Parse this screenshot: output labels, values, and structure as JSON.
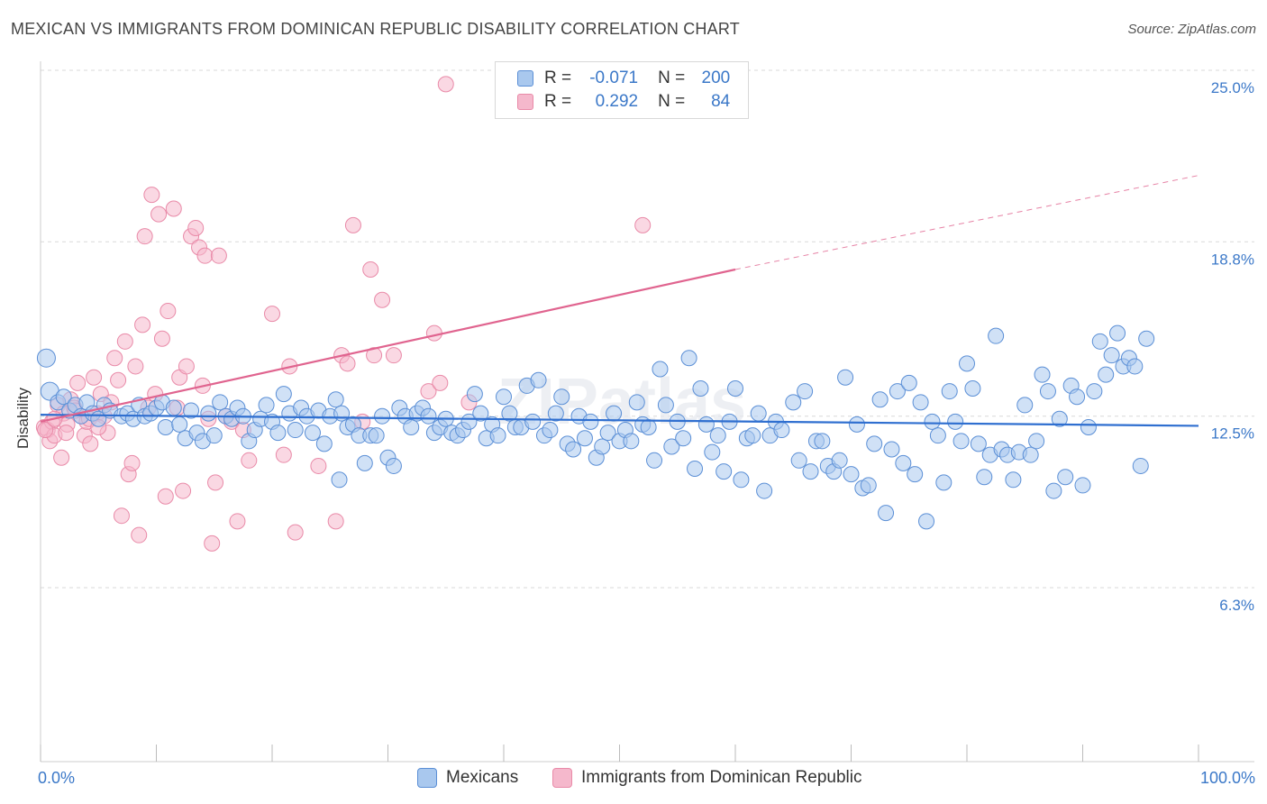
{
  "title": "MEXICAN VS IMMIGRANTS FROM DOMINICAN REPUBLIC DISABILITY CORRELATION CHART",
  "source": "Source: ZipAtlas.com",
  "legend": {
    "rows": [
      {
        "r_label": "R =",
        "r_value": "-0.071",
        "n_label": "N =",
        "n_value": "200"
      },
      {
        "r_label": "R =",
        "r_value": "0.292",
        "n_label": "N =",
        "n_value": "84"
      }
    ]
  },
  "bottom_legend": [
    "Mexicans",
    "Immigrants from Dominican Republic"
  ],
  "colors": {
    "blue_fill": "#a9c8ee",
    "blue_stroke": "#5b8fd6",
    "blue_line": "#2f6fd0",
    "pink_fill": "#f5b8cc",
    "pink_stroke": "#e98aa8",
    "pink_line": "#e0648f",
    "tick_label": "#3b78c8",
    "grid": "#d9d9d9"
  },
  "chart_data": {
    "type": "scatter",
    "title": "MEXICAN VS IMMIGRANTS FROM DOMINICAN REPUBLIC DISABILITY CORRELATION CHART",
    "xlabel": "",
    "ylabel": "Disability",
    "x_tick_labels": [
      "0.0%",
      "100.0%"
    ],
    "y_tick_labels": [
      "6.3%",
      "12.5%",
      "18.8%",
      "25.0%"
    ],
    "y_ticks": [
      6.3,
      12.5,
      18.8,
      25.0
    ],
    "xlim": [
      0,
      100
    ],
    "ylim": [
      0,
      26.0
    ],
    "grid": true,
    "legend_position": "top-center",
    "series": [
      {
        "name": "Mexicans",
        "color": "#5b8fd6",
        "trend": {
          "x": [
            0,
            100
          ],
          "y": [
            12.55,
            12.15
          ]
        },
        "points": [
          [
            0.5,
            14.6
          ],
          [
            0.8,
            13.4
          ],
          [
            1.5,
            13.0
          ],
          [
            2,
            13.2
          ],
          [
            2.5,
            12.7
          ],
          [
            3,
            12.9
          ],
          [
            3.5,
            12.5
          ],
          [
            4,
            13.0
          ],
          [
            4.5,
            12.6
          ],
          [
            5,
            12.4
          ],
          [
            5.5,
            12.9
          ],
          [
            6,
            12.7
          ],
          [
            7,
            12.5
          ],
          [
            7.5,
            12.6
          ],
          [
            8,
            12.4
          ],
          [
            8.5,
            12.9
          ],
          [
            9,
            12.5
          ],
          [
            9.5,
            12.6
          ],
          [
            10,
            12.8
          ],
          [
            10.5,
            13.0
          ],
          [
            10.8,
            12.1
          ],
          [
            11.5,
            12.8
          ],
          [
            12,
            12.2
          ],
          [
            12.5,
            11.7
          ],
          [
            13,
            12.7
          ],
          [
            13.5,
            11.9
          ],
          [
            14,
            11.6
          ],
          [
            14.5,
            12.6
          ],
          [
            15,
            11.8
          ],
          [
            15.5,
            13.0
          ],
          [
            16,
            12.5
          ],
          [
            16.5,
            12.4
          ],
          [
            17,
            12.8
          ],
          [
            17.5,
            12.5
          ],
          [
            18,
            11.6
          ],
          [
            18.5,
            12.0
          ],
          [
            19,
            12.4
          ],
          [
            19.5,
            12.9
          ],
          [
            20,
            12.3
          ],
          [
            20.5,
            11.9
          ],
          [
            21,
            13.3
          ],
          [
            21.5,
            12.6
          ],
          [
            22,
            12.0
          ],
          [
            22.5,
            12.8
          ],
          [
            23,
            12.5
          ],
          [
            23.5,
            11.9
          ],
          [
            24,
            12.7
          ],
          [
            24.5,
            11.5
          ],
          [
            25,
            12.5
          ],
          [
            25.5,
            13.1
          ],
          [
            25.8,
            10.2
          ],
          [
            26,
            12.6
          ],
          [
            26.5,
            12.1
          ],
          [
            27,
            12.2
          ],
          [
            27.5,
            11.8
          ],
          [
            28,
            10.8
          ],
          [
            28.5,
            11.8
          ],
          [
            29,
            11.8
          ],
          [
            29.5,
            12.5
          ],
          [
            30,
            11.0
          ],
          [
            30.5,
            10.7
          ],
          [
            31,
            12.8
          ],
          [
            31.5,
            12.5
          ],
          [
            32,
            12.1
          ],
          [
            32.5,
            12.6
          ],
          [
            33,
            12.8
          ],
          [
            33.5,
            12.5
          ],
          [
            34,
            11.9
          ],
          [
            34.5,
            12.1
          ],
          [
            35,
            12.4
          ],
          [
            35.5,
            11.9
          ],
          [
            36,
            11.8
          ],
          [
            36.5,
            12.0
          ],
          [
            37,
            12.3
          ],
          [
            37.5,
            13.3
          ],
          [
            38,
            12.6
          ],
          [
            38.5,
            11.7
          ],
          [
            39,
            12.2
          ],
          [
            39.5,
            11.8
          ],
          [
            40,
            13.2
          ],
          [
            40.5,
            12.6
          ],
          [
            41,
            12.1
          ],
          [
            41.5,
            12.1
          ],
          [
            42,
            13.6
          ],
          [
            42.5,
            12.3
          ],
          [
            43,
            13.8
          ],
          [
            43.5,
            11.8
          ],
          [
            44,
            12.0
          ],
          [
            44.5,
            12.6
          ],
          [
            45,
            13.2
          ],
          [
            45.5,
            11.5
          ],
          [
            46,
            11.3
          ],
          [
            46.5,
            12.5
          ],
          [
            47,
            11.7
          ],
          [
            47.5,
            12.3
          ],
          [
            48,
            11.0
          ],
          [
            48.5,
            11.4
          ],
          [
            49,
            11.9
          ],
          [
            49.5,
            12.6
          ],
          [
            50,
            11.6
          ],
          [
            50.5,
            12.0
          ],
          [
            51,
            11.6
          ],
          [
            51.5,
            13.0
          ],
          [
            52,
            12.2
          ],
          [
            52.5,
            12.1
          ],
          [
            53,
            10.9
          ],
          [
            53.5,
            14.2
          ],
          [
            54,
            12.9
          ],
          [
            54.5,
            11.4
          ],
          [
            55,
            12.3
          ],
          [
            55.5,
            11.7
          ],
          [
            56,
            14.6
          ],
          [
            56.5,
            10.6
          ],
          [
            57,
            13.5
          ],
          [
            57.5,
            12.2
          ],
          [
            58,
            11.2
          ],
          [
            58.5,
            11.8
          ],
          [
            59,
            10.5
          ],
          [
            59.5,
            12.3
          ],
          [
            60,
            13.5
          ],
          [
            60.5,
            10.2
          ],
          [
            61,
            11.7
          ],
          [
            61.5,
            11.8
          ],
          [
            62,
            12.6
          ],
          [
            62.5,
            9.8
          ],
          [
            63,
            11.8
          ],
          [
            63.5,
            12.3
          ],
          [
            64,
            12.0
          ],
          [
            65,
            13.0
          ],
          [
            65.5,
            10.9
          ],
          [
            66,
            13.4
          ],
          [
            66.5,
            10.5
          ],
          [
            67,
            11.6
          ],
          [
            67.5,
            11.6
          ],
          [
            68,
            10.7
          ],
          [
            68.5,
            10.5
          ],
          [
            69,
            10.9
          ],
          [
            69.5,
            13.9
          ],
          [
            70,
            10.4
          ],
          [
            70.5,
            12.2
          ],
          [
            71,
            9.9
          ],
          [
            71.5,
            10.0
          ],
          [
            72,
            11.5
          ],
          [
            72.5,
            13.1
          ],
          [
            73,
            9.0
          ],
          [
            73.5,
            11.3
          ],
          [
            74,
            13.4
          ],
          [
            74.5,
            10.8
          ],
          [
            75,
            13.7
          ],
          [
            75.5,
            10.4
          ],
          [
            76,
            13.0
          ],
          [
            76.5,
            8.7
          ],
          [
            77,
            12.3
          ],
          [
            77.5,
            11.8
          ],
          [
            78,
            10.1
          ],
          [
            78.5,
            13.4
          ],
          [
            79,
            12.3
          ],
          [
            79.5,
            11.6
          ],
          [
            80,
            14.4
          ],
          [
            80.5,
            13.5
          ],
          [
            81,
            11.5
          ],
          [
            81.5,
            10.3
          ],
          [
            82,
            11.1
          ],
          [
            82.5,
            15.4
          ],
          [
            83,
            11.3
          ],
          [
            83.5,
            11.1
          ],
          [
            84,
            10.2
          ],
          [
            84.5,
            11.2
          ],
          [
            85,
            12.9
          ],
          [
            85.5,
            11.1
          ],
          [
            86,
            11.6
          ],
          [
            86.5,
            14.0
          ],
          [
            87,
            13.4
          ],
          [
            87.5,
            9.8
          ],
          [
            88,
            12.4
          ],
          [
            88.5,
            10.3
          ],
          [
            89,
            13.6
          ],
          [
            89.5,
            13.2
          ],
          [
            90,
            10.0
          ],
          [
            90.5,
            12.1
          ],
          [
            91,
            13.4
          ],
          [
            91.5,
            15.2
          ],
          [
            92,
            14.0
          ],
          [
            92.5,
            14.7
          ],
          [
            93,
            15.5
          ],
          [
            93.5,
            14.3
          ],
          [
            94,
            14.6
          ],
          [
            94.5,
            14.3
          ],
          [
            95,
            10.7
          ],
          [
            95.5,
            15.3
          ]
        ]
      },
      {
        "name": "Immigrants from Dominican Republic",
        "color": "#e98aa8",
        "trend": {
          "x": [
            0,
            60
          ],
          "y": [
            12.3,
            17.8
          ],
          "dashed_x": [
            60,
            100
          ],
          "dashed_y": [
            17.8,
            21.2
          ]
        },
        "points": [
          [
            0.3,
            12.1
          ],
          [
            0.6,
            12.0
          ],
          [
            0.8,
            11.6
          ],
          [
            1.0,
            12.3
          ],
          [
            1.2,
            11.8
          ],
          [
            1.5,
            12.9
          ],
          [
            1.8,
            11.0
          ],
          [
            2.0,
            12.6
          ],
          [
            2.3,
            12.2
          ],
          [
            2.6,
            13.1
          ],
          [
            2.9,
            12.8
          ],
          [
            3.2,
            13.7
          ],
          [
            3.5,
            12.5
          ],
          [
            3.8,
            11.8
          ],
          [
            4.0,
            12.3
          ],
          [
            4.3,
            11.5
          ],
          [
            4.6,
            13.9
          ],
          [
            4.9,
            12.6
          ],
          [
            5.2,
            13.3
          ],
          [
            5.5,
            12.5
          ],
          [
            5.8,
            11.9
          ],
          [
            6.1,
            13.0
          ],
          [
            6.4,
            14.6
          ],
          [
            6.7,
            13.8
          ],
          [
            7.0,
            8.9
          ],
          [
            7.3,
            15.2
          ],
          [
            7.6,
            10.4
          ],
          [
            7.9,
            10.8
          ],
          [
            8.2,
            14.3
          ],
          [
            8.5,
            8.2
          ],
          [
            8.8,
            15.8
          ],
          [
            9.0,
            19.0
          ],
          [
            9.3,
            12.8
          ],
          [
            9.6,
            20.5
          ],
          [
            9.9,
            13.3
          ],
          [
            10.2,
            19.8
          ],
          [
            10.5,
            15.3
          ],
          [
            10.8,
            9.6
          ],
          [
            11.0,
            16.3
          ],
          [
            11.5,
            20.0
          ],
          [
            11.8,
            12.8
          ],
          [
            12.0,
            13.9
          ],
          [
            12.3,
            9.8
          ],
          [
            12.6,
            14.3
          ],
          [
            13.0,
            19.0
          ],
          [
            13.4,
            19.3
          ],
          [
            13.7,
            18.6
          ],
          [
            14.0,
            13.6
          ],
          [
            14.2,
            18.3
          ],
          [
            14.5,
            12.4
          ],
          [
            14.8,
            7.9
          ],
          [
            15.1,
            10.1
          ],
          [
            15.4,
            18.3
          ],
          [
            16.0,
            12.5
          ],
          [
            16.5,
            12.3
          ],
          [
            17.0,
            8.7
          ],
          [
            17.5,
            12.0
          ],
          [
            18.0,
            10.9
          ],
          [
            20.0,
            16.2
          ],
          [
            21.0,
            11.1
          ],
          [
            21.5,
            14.3
          ],
          [
            22.0,
            8.3
          ],
          [
            24.0,
            10.7
          ],
          [
            25.5,
            8.7
          ],
          [
            26.0,
            14.7
          ],
          [
            26.5,
            14.4
          ],
          [
            27.0,
            19.4
          ],
          [
            27.8,
            12.3
          ],
          [
            28.5,
            17.8
          ],
          [
            28.8,
            14.7
          ],
          [
            29.5,
            16.7
          ],
          [
            30.5,
            14.7
          ],
          [
            33.5,
            13.4
          ],
          [
            34.0,
            15.5
          ],
          [
            34.5,
            13.7
          ],
          [
            35.0,
            24.5
          ],
          [
            37.0,
            13.0
          ],
          [
            52.0,
            19.4
          ],
          [
            0.4,
            12.0
          ],
          [
            1.2,
            12.4
          ],
          [
            2.2,
            11.9
          ],
          [
            3.0,
            12.7
          ],
          [
            4.2,
            12.4
          ],
          [
            5.0,
            12.1
          ]
        ]
      }
    ]
  }
}
